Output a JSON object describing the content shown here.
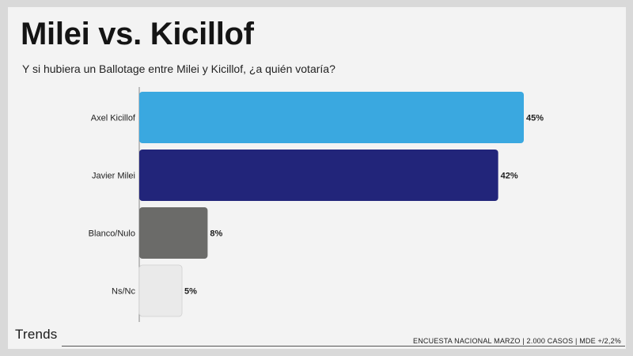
{
  "header": {
    "title": "Milei vs. Kicillof",
    "subtitle": "Y si hubiera un Ballotage entre Milei y Kicillof, ¿a quién votaría?"
  },
  "branding": {
    "logo_text": "Trends"
  },
  "footer": {
    "note": "ENCUESTA NACIONAL MARZO | 2.000 CASOS | MDE +/2,2%"
  },
  "chart_data": {
    "type": "bar",
    "orientation": "horizontal",
    "title": "Milei vs. Kicillof",
    "subtitle": "Y si hubiera un Ballotage entre Milei y Kicillof, ¿a quién votaría?",
    "categories": [
      "Axel Kicillof",
      "Javier Milei",
      "Blanco/Nulo",
      "Ns/Nc"
    ],
    "values": [
      45,
      42,
      8,
      5
    ],
    "value_labels": [
      "45%",
      "42%",
      "8%",
      "5%"
    ],
    "colors": [
      "#3aa8e0",
      "#22257a",
      "#6b6b69",
      "#eaeaea"
    ],
    "xlim": [
      0,
      45
    ],
    "grid": false,
    "legend": "none"
  }
}
